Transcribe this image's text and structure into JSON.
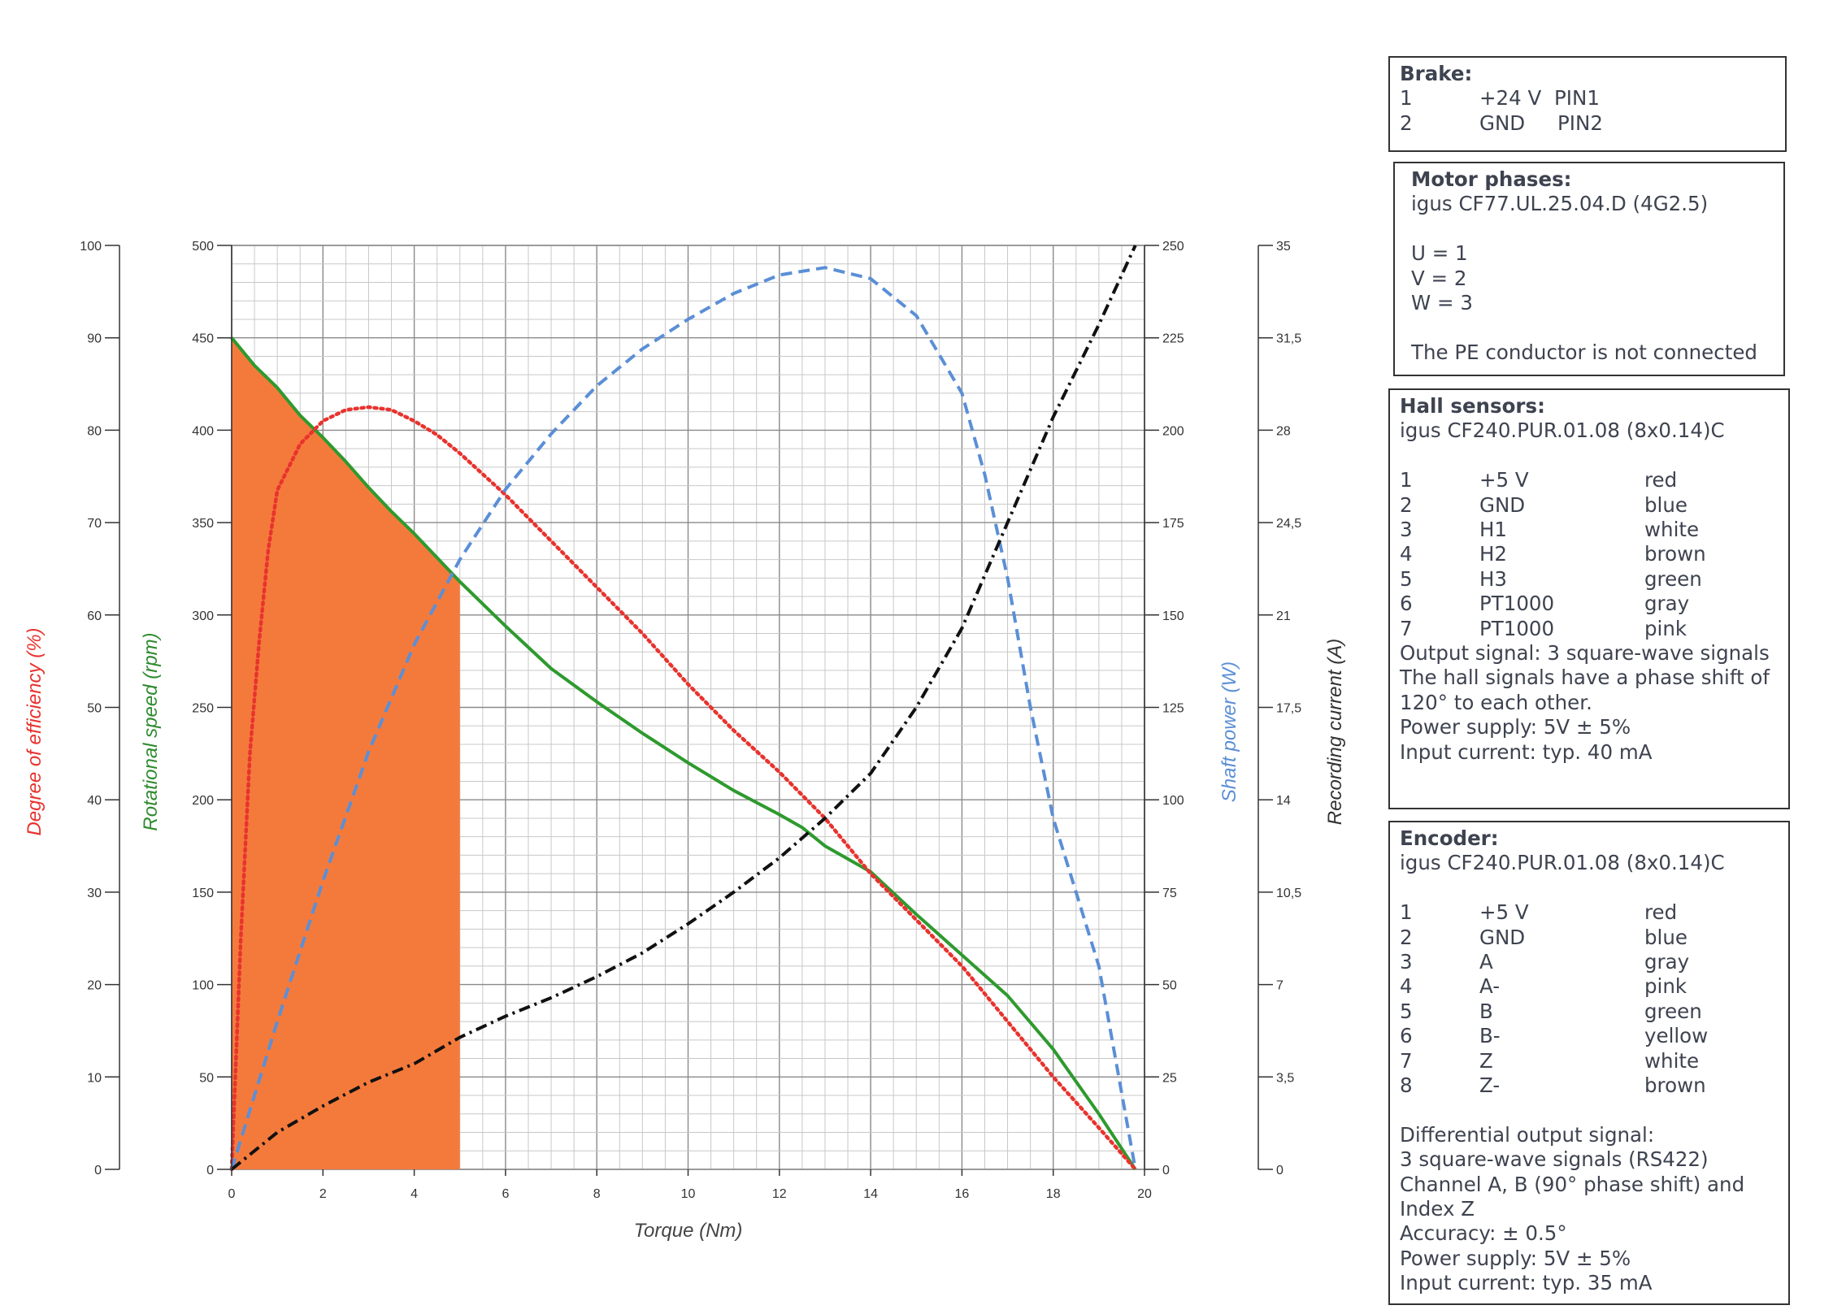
{
  "chart_data": {
    "type": "line",
    "x_axis": {
      "label": "Torque (Nm)",
      "range": [
        0,
        20
      ],
      "ticks": [
        "0",
        "2",
        "4",
        "6",
        "8",
        "10",
        "12",
        "14",
        "16",
        "18",
        "20"
      ]
    },
    "y_axes": [
      {
        "id": "efficiency",
        "label": "Degree of efficiency (%)",
        "color": "#e8332e",
        "range": [
          0,
          100
        ],
        "ticks": [
          "0",
          "10",
          "20",
          "30",
          "40",
          "50",
          "60",
          "70",
          "80",
          "90",
          "100"
        ]
      },
      {
        "id": "speed",
        "label": "Rotational speed (rpm)",
        "color": "#2e8b2e",
        "range": [
          0,
          500
        ],
        "ticks": [
          "0",
          "50",
          "100",
          "150",
          "200",
          "250",
          "300",
          "350",
          "400",
          "450",
          "500"
        ]
      },
      {
        "id": "power",
        "label": "Shaft power (W)",
        "color": "#5b8fd6",
        "range": [
          0,
          250
        ],
        "ticks": [
          "0",
          "25",
          "50",
          "75",
          "100",
          "125",
          "150",
          "175",
          "200",
          "225",
          "250"
        ]
      },
      {
        "id": "current",
        "label": "Recording current (A)",
        "color": "#333333",
        "range": [
          0,
          35
        ],
        "ticks": [
          "0",
          "3,5",
          "7",
          "10,5",
          "14",
          "17,5",
          "21",
          "24,5",
          "28",
          "31,5",
          "35"
        ]
      }
    ],
    "grid": true,
    "shaded_region": {
      "axis": "speed",
      "x_range": [
        0,
        5
      ],
      "color": "#f47a3c"
    },
    "series": [
      {
        "axis": "speed",
        "color": "#2e9a2e",
        "style": "solid",
        "points": [
          [
            0,
            450
          ],
          [
            0.5,
            435
          ],
          [
            1,
            423
          ],
          [
            1.5,
            408
          ],
          [
            2,
            396
          ],
          [
            2.5,
            383
          ],
          [
            3,
            369
          ],
          [
            3.5,
            356
          ],
          [
            4,
            344
          ],
          [
            4.5,
            331
          ],
          [
            5,
            318
          ],
          [
            6,
            294
          ],
          [
            7,
            271
          ],
          [
            8,
            253
          ],
          [
            9,
            236
          ],
          [
            10,
            220
          ],
          [
            11,
            205
          ],
          [
            12,
            192
          ],
          [
            12.5,
            185
          ],
          [
            13,
            175
          ],
          [
            14,
            161
          ],
          [
            15,
            138
          ],
          [
            16,
            116
          ],
          [
            17,
            94
          ],
          [
            18,
            65
          ],
          [
            19,
            30
          ],
          [
            19.8,
            0
          ]
        ]
      },
      {
        "axis": "efficiency",
        "color": "#e8332e",
        "style": "dotted",
        "points": [
          [
            0,
            0
          ],
          [
            0.2,
            25
          ],
          [
            0.4,
            45
          ],
          [
            0.6,
            57
          ],
          [
            0.8,
            67
          ],
          [
            1,
            73.5
          ],
          [
            1.5,
            78.5
          ],
          [
            2,
            81
          ],
          [
            2.5,
            82.2
          ],
          [
            3,
            82.5
          ],
          [
            3.5,
            82.2
          ],
          [
            4,
            81
          ],
          [
            4.5,
            79.5
          ],
          [
            5,
            77.5
          ],
          [
            6,
            73
          ],
          [
            7,
            68
          ],
          [
            8,
            63
          ],
          [
            9,
            58
          ],
          [
            10,
            52.5
          ],
          [
            11,
            47.5
          ],
          [
            12,
            43
          ],
          [
            13,
            38
          ],
          [
            14,
            32
          ],
          [
            15,
            27
          ],
          [
            16,
            22
          ],
          [
            17,
            16
          ],
          [
            18,
            10
          ],
          [
            19,
            4.5
          ],
          [
            19.8,
            0
          ]
        ]
      },
      {
        "axis": "power",
        "color": "#5b8fd6",
        "style": "dashed",
        "points": [
          [
            0,
            0
          ],
          [
            1,
            40
          ],
          [
            2,
            78
          ],
          [
            3,
            113
          ],
          [
            4,
            142
          ],
          [
            5,
            165
          ],
          [
            6,
            184
          ],
          [
            7,
            199
          ],
          [
            8,
            212
          ],
          [
            9,
            222
          ],
          [
            10,
            230
          ],
          [
            11,
            237
          ],
          [
            12,
            242
          ],
          [
            13,
            244
          ],
          [
            14,
            241
          ],
          [
            15,
            231
          ],
          [
            16,
            210
          ],
          [
            16.5,
            188
          ],
          [
            17,
            160
          ],
          [
            17.5,
            125
          ],
          [
            18,
            95
          ],
          [
            19,
            55
          ],
          [
            19.8,
            0
          ]
        ]
      },
      {
        "axis": "current",
        "color": "#111111",
        "style": "dashdot",
        "points": [
          [
            0,
            0
          ],
          [
            1,
            1.4
          ],
          [
            2,
            2.4
          ],
          [
            3,
            3.3
          ],
          [
            4,
            4
          ],
          [
            5,
            5
          ],
          [
            6,
            5.8
          ],
          [
            7,
            6.5
          ],
          [
            8,
            7.3
          ],
          [
            9,
            8.2
          ],
          [
            10,
            9.3
          ],
          [
            11,
            10.5
          ],
          [
            12,
            11.8
          ],
          [
            13,
            13.3
          ],
          [
            14,
            15
          ],
          [
            15,
            17.5
          ],
          [
            16,
            20.5
          ],
          [
            17,
            24.5
          ],
          [
            18,
            28.5
          ],
          [
            19,
            32
          ],
          [
            19.8,
            35
          ]
        ]
      }
    ]
  },
  "boxes": {
    "brake": {
      "title": "Brake:",
      "rows": [
        [
          "1",
          "+24 V",
          "PIN1"
        ],
        [
          "2",
          "GND",
          "PIN2"
        ]
      ]
    },
    "motor": {
      "title": "Motor phases:",
      "cable": "igus CF77.UL.25.04.D (4G2.5)",
      "lines": [
        "U = 1",
        "V  = 2",
        "W = 3"
      ],
      "note": "The PE conductor is not connected"
    },
    "hall": {
      "title": "Hall sensors:",
      "cable": "igus CF240.PUR.01.08 (8x0.14)C",
      "rows": [
        [
          "1",
          "+5 V",
          "red"
        ],
        [
          "2",
          "GND",
          "blue"
        ],
        [
          "3",
          "H1",
          "white"
        ],
        [
          "4",
          "H2",
          "brown"
        ],
        [
          "5",
          "H3",
          "green"
        ],
        [
          "6",
          "PT1000",
          "gray"
        ],
        [
          "7",
          "PT1000",
          "pink"
        ]
      ],
      "notes": [
        "Output signal: 3 square-wave signals",
        "The hall signals have a phase shift of",
        "120° to each other.",
        "Power supply: 5V ± 5%",
        "Input current: typ. 40 mA"
      ]
    },
    "encoder": {
      "title": "Encoder:",
      "cable": "igus CF240.PUR.01.08 (8x0.14)C",
      "rows": [
        [
          "1",
          "+5 V",
          "red"
        ],
        [
          "2",
          "GND",
          "blue"
        ],
        [
          "3",
          "A",
          "gray"
        ],
        [
          "4",
          "A-",
          "pink"
        ],
        [
          "5",
          "B",
          "green"
        ],
        [
          "6",
          "B-",
          "yellow"
        ],
        [
          "7",
          "Z",
          "white"
        ],
        [
          "8",
          "Z-",
          "brown"
        ]
      ],
      "notes": [
        "Differential output signal:",
        "3 square-wave signals (RS422)",
        "Channel A, B (90° phase shift) and",
        "Index Z",
        "Accuracy: ± 0.5°",
        "Power supply: 5V ± 5%",
        "Input current: typ. 35 mA"
      ]
    }
  }
}
